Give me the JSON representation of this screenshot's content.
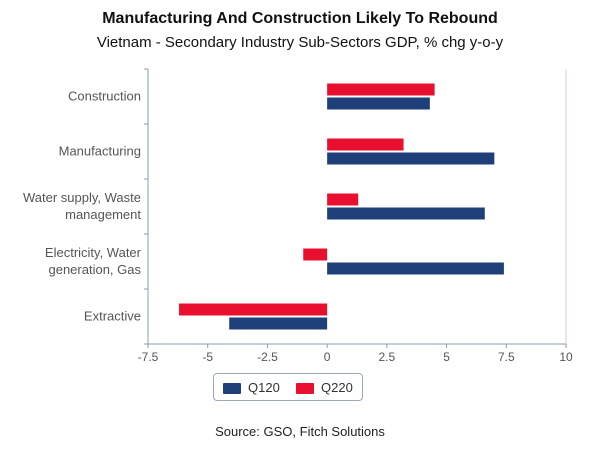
{
  "title": "Manufacturing And Construction Likely To Rebound",
  "subtitle": "Vietnam - Secondary Industry Sub-Sectors GDP, % chg y-o-y",
  "source": "Source: GSO, Fitch Solutions",
  "chart_data": {
    "type": "bar",
    "orientation": "horizontal",
    "categories": [
      [
        "Construction"
      ],
      [
        "Manufacturing"
      ],
      [
        "Water supply, Waste",
        "management"
      ],
      [
        "Electricity, Water",
        "generation, Gas"
      ],
      [
        "Extractive"
      ]
    ],
    "series": [
      {
        "name": "Q120",
        "color": "#1f3f7a",
        "values": [
          4.3,
          7.0,
          6.6,
          7.4,
          -4.1
        ]
      },
      {
        "name": "Q220",
        "color": "#e8102e",
        "values": [
          4.5,
          3.2,
          1.3,
          -1.0,
          -6.2
        ]
      }
    ],
    "xlim": [
      -7.5,
      10
    ],
    "xticks": [
      -7.5,
      -5,
      -2.5,
      0,
      2.5,
      5,
      7.5,
      10
    ],
    "xtick_labels": [
      "-7.5",
      "-5",
      "-2.5",
      "0",
      "2.5",
      "5",
      "7.5",
      "10"
    ],
    "xlabel": "",
    "ylabel": "",
    "grid": false,
    "legend": "bottom"
  }
}
